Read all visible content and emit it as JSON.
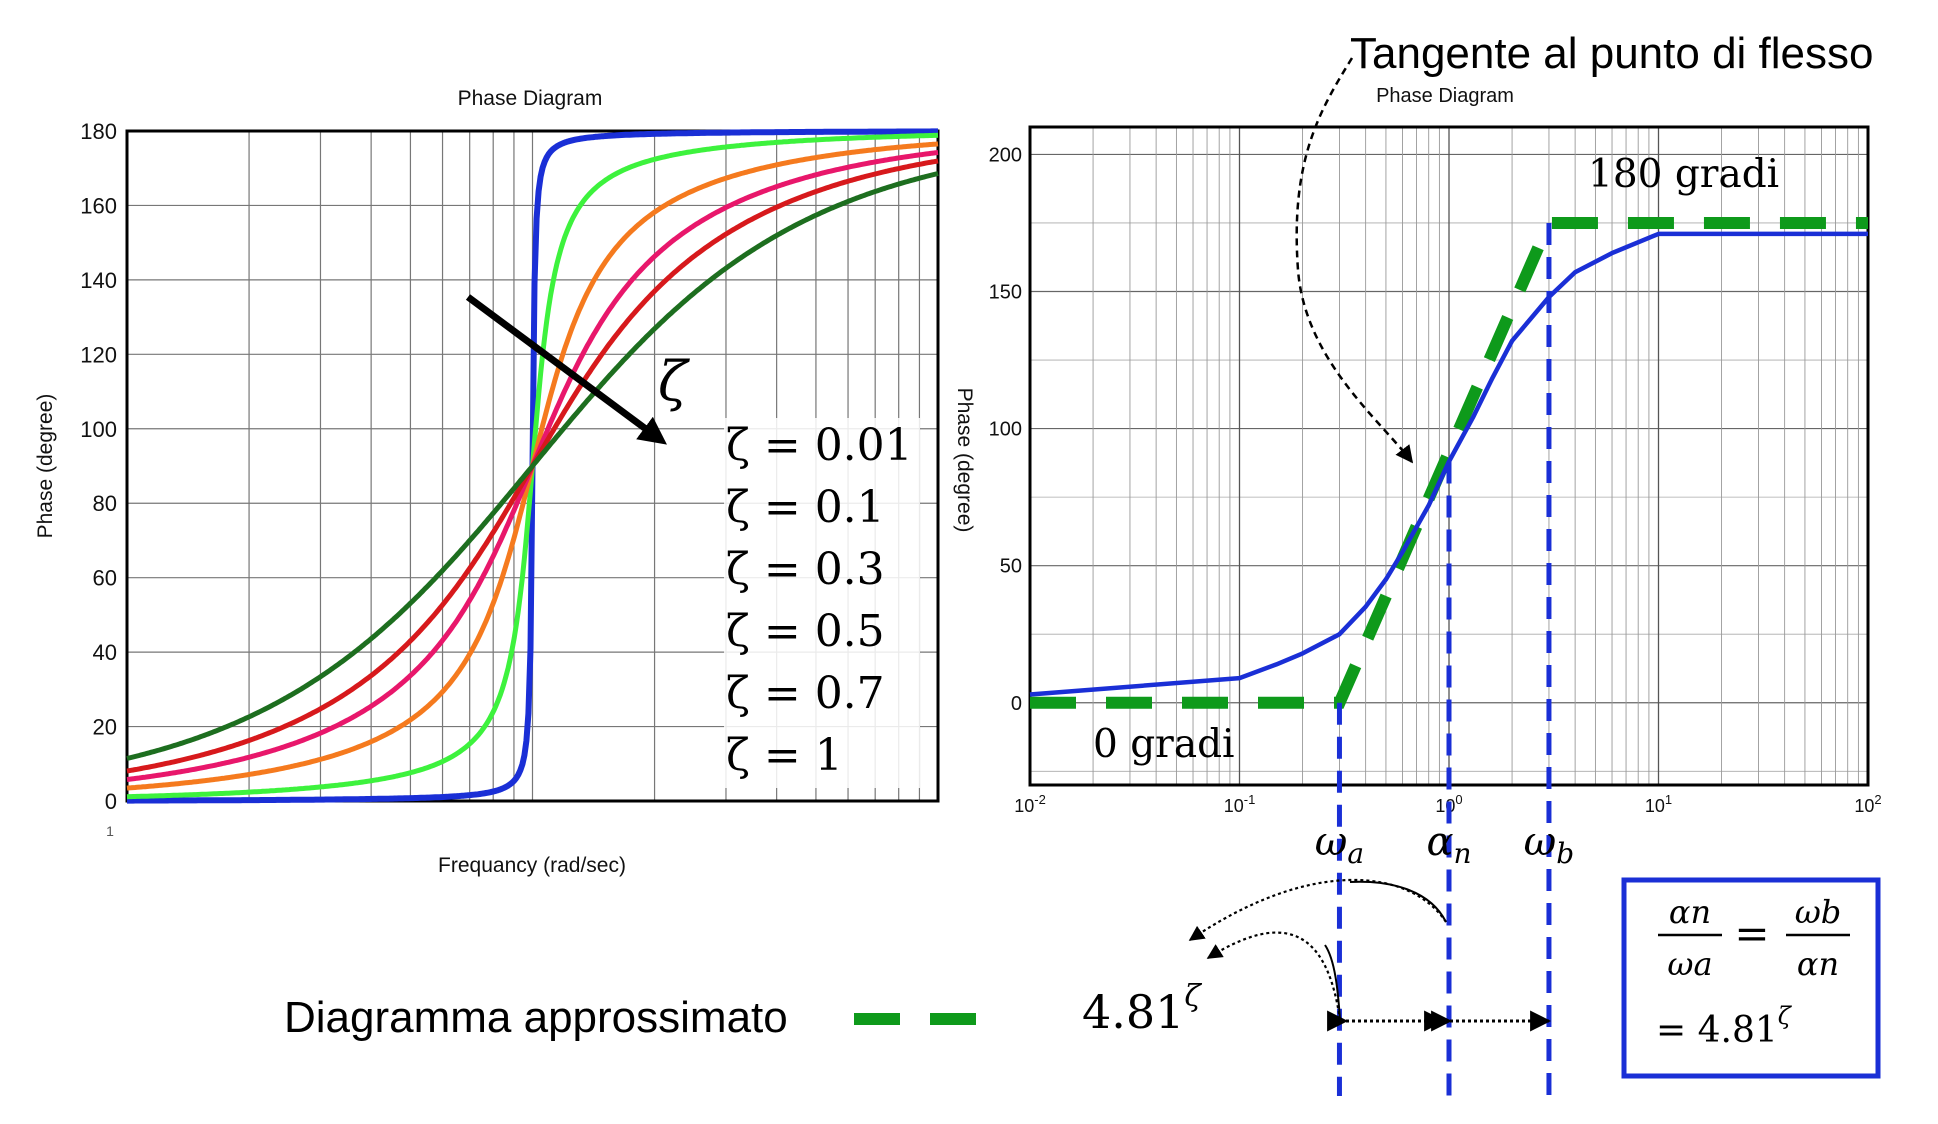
{
  "annotation_top": "Tangente al punto di flesso",
  "legend_approx": "Diagramma approssimato",
  "ratio_label": {
    "base": "4.81",
    "exp": "ζ"
  },
  "box_formula": {
    "lhs_num": "αn",
    "lhs_den": "ωa",
    "rhs_num": "ωb",
    "rhs_den": "αn",
    "eq": "=",
    "result_base": "= 4.81",
    "result_exp": "ζ"
  },
  "freq_labels": [
    "ωa",
    "αn",
    "ωb"
  ],
  "colors": {
    "blue": "#1a2fd6",
    "green_dash": "#0e9a1b",
    "z001": "#1a2fd6",
    "z01": "#3df23d",
    "z03": "#f57a1e",
    "z05": "#e8176b",
    "z07": "#d7191c",
    "z1": "#1d6e1f"
  },
  "chart_data": [
    {
      "type": "line",
      "title": "Phase Diagram",
      "xlabel": "Frequancy (rad/sec)",
      "ylabel": "Phase (degree)",
      "xscale": "log",
      "xlim": [
        0.1,
        10
      ],
      "ylim": [
        0,
        180
      ],
      "yticks": [
        0,
        20,
        40,
        60,
        80,
        100,
        120,
        140,
        160,
        180
      ],
      "xtick_label": "1",
      "grid": true,
      "arrow_label": "ζ",
      "annotations": [
        "ζ = 0.01",
        "ζ = 0.1",
        "ζ = 0.3",
        "ζ = 0.5",
        "ζ = 0.7",
        "ζ = 1"
      ],
      "series": [
        {
          "zeta": 0.01,
          "color": "z001"
        },
        {
          "zeta": 0.1,
          "color": "z01"
        },
        {
          "zeta": 0.3,
          "color": "z03"
        },
        {
          "zeta": 0.5,
          "color": "z05"
        },
        {
          "zeta": 0.7,
          "color": "z07"
        },
        {
          "zeta": 1.0,
          "color": "z1"
        }
      ]
    },
    {
      "type": "line",
      "title": "Phase Diagram",
      "ylabel": "Phase (degree)",
      "xscale": "log",
      "xlim": [
        0.01,
        100
      ],
      "ylim": [
        -30,
        210
      ],
      "yticks": [
        0,
        50,
        100,
        150,
        200
      ],
      "xticks": [
        "10-2",
        "10-1",
        "100",
        "101",
        "102"
      ],
      "grid": true,
      "label_180": "180 gradi",
      "label_0": "0 gradi",
      "series_actual": {
        "x": [
          0.01,
          0.1,
          0.15,
          0.2,
          0.3,
          0.4,
          0.5,
          0.6,
          0.8,
          1.0,
          1.3,
          1.6,
          2.0,
          3.0,
          4.0,
          6.0,
          10.0,
          100.0
        ],
        "y": [
          3,
          9,
          14,
          18,
          25,
          35,
          45,
          55,
          72,
          88,
          104,
          118,
          132,
          148,
          157,
          164,
          171,
          171
        ]
      },
      "series_approx": {
        "x": [
          0.01,
          0.3,
          3.0,
          100.0
        ],
        "y": [
          0,
          0,
          175,
          175
        ]
      },
      "markers": {
        "wa": 0.3,
        "an": 1.0,
        "wb": 3.0
      }
    }
  ]
}
